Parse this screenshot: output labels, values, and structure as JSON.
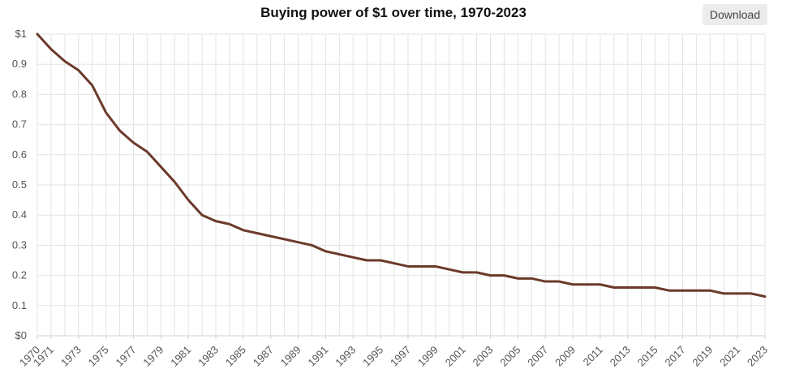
{
  "header": {
    "title": "Buying power of $1 over time, 1970-2023",
    "download_label": "Download"
  },
  "chart_data": {
    "type": "line",
    "title": "Buying power of $1 over time, 1970-2023",
    "xlabel": "",
    "ylabel": "",
    "ylim": [
      0,
      1
    ],
    "grid": true,
    "y_tick_labels": [
      "$0",
      "0.1",
      "0.2",
      "0.3",
      "0.4",
      "0.5",
      "0.6",
      "0.7",
      "0.8",
      "0.9",
      "$1"
    ],
    "x_tick_labels": [
      "1970",
      "1971",
      "1973",
      "1975",
      "1977",
      "1979",
      "1981",
      "1983",
      "1985",
      "1987",
      "1989",
      "1991",
      "1993",
      "1995",
      "1997",
      "1999",
      "2001",
      "2003",
      "2005",
      "2007",
      "2009",
      "2011",
      "2013",
      "2015",
      "2017",
      "2019",
      "2021",
      "2023"
    ],
    "line_color": "#6b3a2a",
    "x": [
      1970,
      1971,
      1972,
      1973,
      1974,
      1975,
      1976,
      1977,
      1978,
      1979,
      1980,
      1981,
      1982,
      1983,
      1984,
      1985,
      1986,
      1987,
      1988,
      1989,
      1990,
      1991,
      1992,
      1993,
      1994,
      1995,
      1996,
      1997,
      1998,
      1999,
      2000,
      2001,
      2002,
      2003,
      2004,
      2005,
      2006,
      2007,
      2008,
      2009,
      2010,
      2011,
      2012,
      2013,
      2014,
      2015,
      2016,
      2017,
      2018,
      2019,
      2020,
      2021,
      2022,
      2023
    ],
    "values": [
      1.0,
      0.95,
      0.91,
      0.88,
      0.83,
      0.74,
      0.68,
      0.64,
      0.61,
      0.56,
      0.51,
      0.45,
      0.4,
      0.38,
      0.37,
      0.35,
      0.34,
      0.33,
      0.32,
      0.31,
      0.3,
      0.28,
      0.27,
      0.26,
      0.25,
      0.25,
      0.24,
      0.23,
      0.23,
      0.23,
      0.22,
      0.21,
      0.21,
      0.2,
      0.2,
      0.19,
      0.19,
      0.18,
      0.18,
      0.17,
      0.17,
      0.17,
      0.16,
      0.16,
      0.16,
      0.16,
      0.15,
      0.15,
      0.15,
      0.15,
      0.14,
      0.14,
      0.14,
      0.13
    ]
  }
}
